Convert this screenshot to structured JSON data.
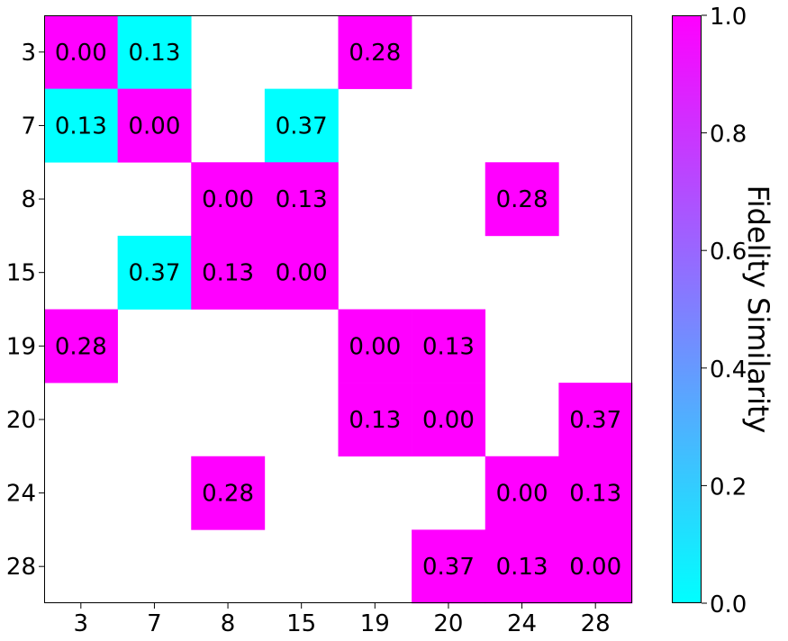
{
  "chart_data": {
    "type": "heatmap",
    "title": "",
    "xlabel": "",
    "ylabel": "",
    "x_categories": [
      "3",
      "7",
      "8",
      "15",
      "19",
      "20",
      "24",
      "28"
    ],
    "y_categories": [
      "3",
      "7",
      "8",
      "15",
      "19",
      "20",
      "24",
      "28"
    ],
    "cells": [
      {
        "row": "3",
        "col": "3",
        "value": 0.0,
        "color_value": 1.0,
        "label": "0.00"
      },
      {
        "row": "3",
        "col": "7",
        "value": 0.13,
        "color_value": 0.0,
        "label": "0.13"
      },
      {
        "row": "3",
        "col": "19",
        "value": 0.28,
        "color_value": 1.0,
        "label": "0.28"
      },
      {
        "row": "7",
        "col": "3",
        "value": 0.13,
        "color_value": 0.0,
        "label": "0.13"
      },
      {
        "row": "7",
        "col": "7",
        "value": 0.0,
        "color_value": 1.0,
        "label": "0.00"
      },
      {
        "row": "7",
        "col": "15",
        "value": 0.37,
        "color_value": 0.0,
        "label": "0.37"
      },
      {
        "row": "8",
        "col": "8",
        "value": 0.0,
        "color_value": 1.0,
        "label": "0.00"
      },
      {
        "row": "8",
        "col": "15",
        "value": 0.13,
        "color_value": 1.0,
        "label": "0.13"
      },
      {
        "row": "8",
        "col": "24",
        "value": 0.28,
        "color_value": 1.0,
        "label": "0.28"
      },
      {
        "row": "15",
        "col": "7",
        "value": 0.37,
        "color_value": 0.0,
        "label": "0.37"
      },
      {
        "row": "15",
        "col": "8",
        "value": 0.13,
        "color_value": 1.0,
        "label": "0.13"
      },
      {
        "row": "15",
        "col": "15",
        "value": 0.0,
        "color_value": 1.0,
        "label": "0.00"
      },
      {
        "row": "19",
        "col": "3",
        "value": 0.28,
        "color_value": 1.0,
        "label": "0.28"
      },
      {
        "row": "19",
        "col": "19",
        "value": 0.0,
        "color_value": 1.0,
        "label": "0.00"
      },
      {
        "row": "19",
        "col": "20",
        "value": 0.13,
        "color_value": 1.0,
        "label": "0.13"
      },
      {
        "row": "20",
        "col": "19",
        "value": 0.13,
        "color_value": 1.0,
        "label": "0.13"
      },
      {
        "row": "20",
        "col": "20",
        "value": 0.0,
        "color_value": 1.0,
        "label": "0.00"
      },
      {
        "row": "20",
        "col": "28",
        "value": 0.37,
        "color_value": 1.0,
        "label": "0.37"
      },
      {
        "row": "24",
        "col": "8",
        "value": 0.28,
        "color_value": 1.0,
        "label": "0.28"
      },
      {
        "row": "24",
        "col": "24",
        "value": 0.0,
        "color_value": 1.0,
        "label": "0.00"
      },
      {
        "row": "24",
        "col": "28",
        "value": 0.13,
        "color_value": 1.0,
        "label": "0.13"
      },
      {
        "row": "28",
        "col": "20",
        "value": 0.37,
        "color_value": 1.0,
        "label": "0.37"
      },
      {
        "row": "28",
        "col": "24",
        "value": 0.13,
        "color_value": 1.0,
        "label": "0.13"
      },
      {
        "row": "28",
        "col": "28",
        "value": 0.0,
        "color_value": 1.0,
        "label": "0.00"
      }
    ],
    "empty_cell_color": "#ffffff",
    "colorbar": {
      "label": "Fidelity Similarity",
      "range": [
        0.0,
        1.0
      ],
      "ticks": [
        0.0,
        0.2,
        0.4,
        0.6,
        0.8,
        1.0
      ],
      "tick_labels": [
        "0.0",
        "0.2",
        "0.4",
        "0.6",
        "0.8",
        "1.0"
      ],
      "colormap": "cool",
      "color_min": "#00ffff",
      "color_max": "#ff00ff"
    },
    "grid": false,
    "legend": "none"
  }
}
